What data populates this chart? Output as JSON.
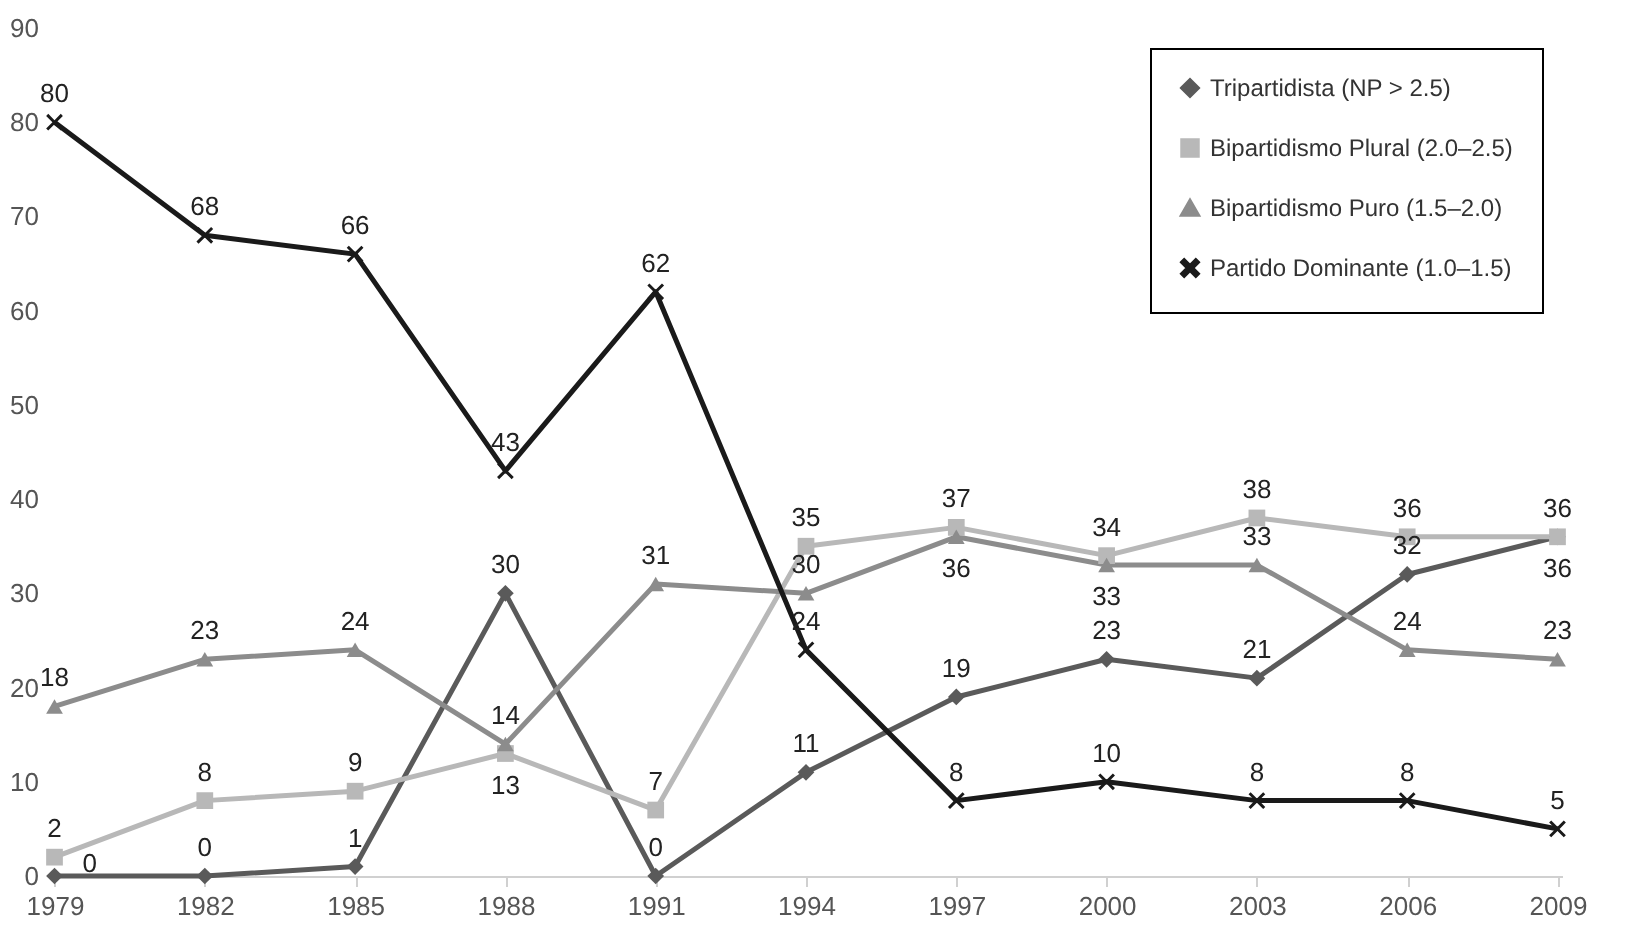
{
  "chart_data": {
    "type": "line",
    "categories": [
      "1979",
      "1982",
      "1985",
      "1988",
      "1991",
      "1994",
      "1997",
      "2000",
      "2003",
      "2006",
      "2009"
    ],
    "series": [
      {
        "name": "Tripartidista (NP > 2.5)",
        "color": "#5a5a5a",
        "marker": "diamond",
        "values": [
          0,
          0,
          1,
          30,
          0,
          11,
          19,
          23,
          21,
          32,
          36
        ]
      },
      {
        "name": "Bipartidismo Plural (2.0–2.5)",
        "color": "#b8b8b8",
        "marker": "square",
        "values": [
          2,
          8,
          9,
          13,
          7,
          35,
          37,
          34,
          38,
          36,
          36
        ]
      },
      {
        "name": "Bipartidismo Puro (1.5–2.0)",
        "color": "#8c8c8c",
        "marker": "triangle",
        "values": [
          18,
          23,
          24,
          14,
          31,
          30,
          36,
          33,
          33,
          24,
          23
        ]
      },
      {
        "name": "Partido Dominante (1.0–1.5)",
        "color": "#1a1a1a",
        "marker": "cross",
        "values": [
          80,
          68,
          66,
          43,
          62,
          24,
          8,
          10,
          8,
          8,
          5
        ]
      }
    ],
    "ylim": [
      0,
      90
    ],
    "yticks": [
      0,
      10,
      20,
      30,
      40,
      50,
      60,
      70,
      80,
      90
    ],
    "grid": false,
    "legend": "top right",
    "data_labels": true,
    "line_style": "solid"
  }
}
